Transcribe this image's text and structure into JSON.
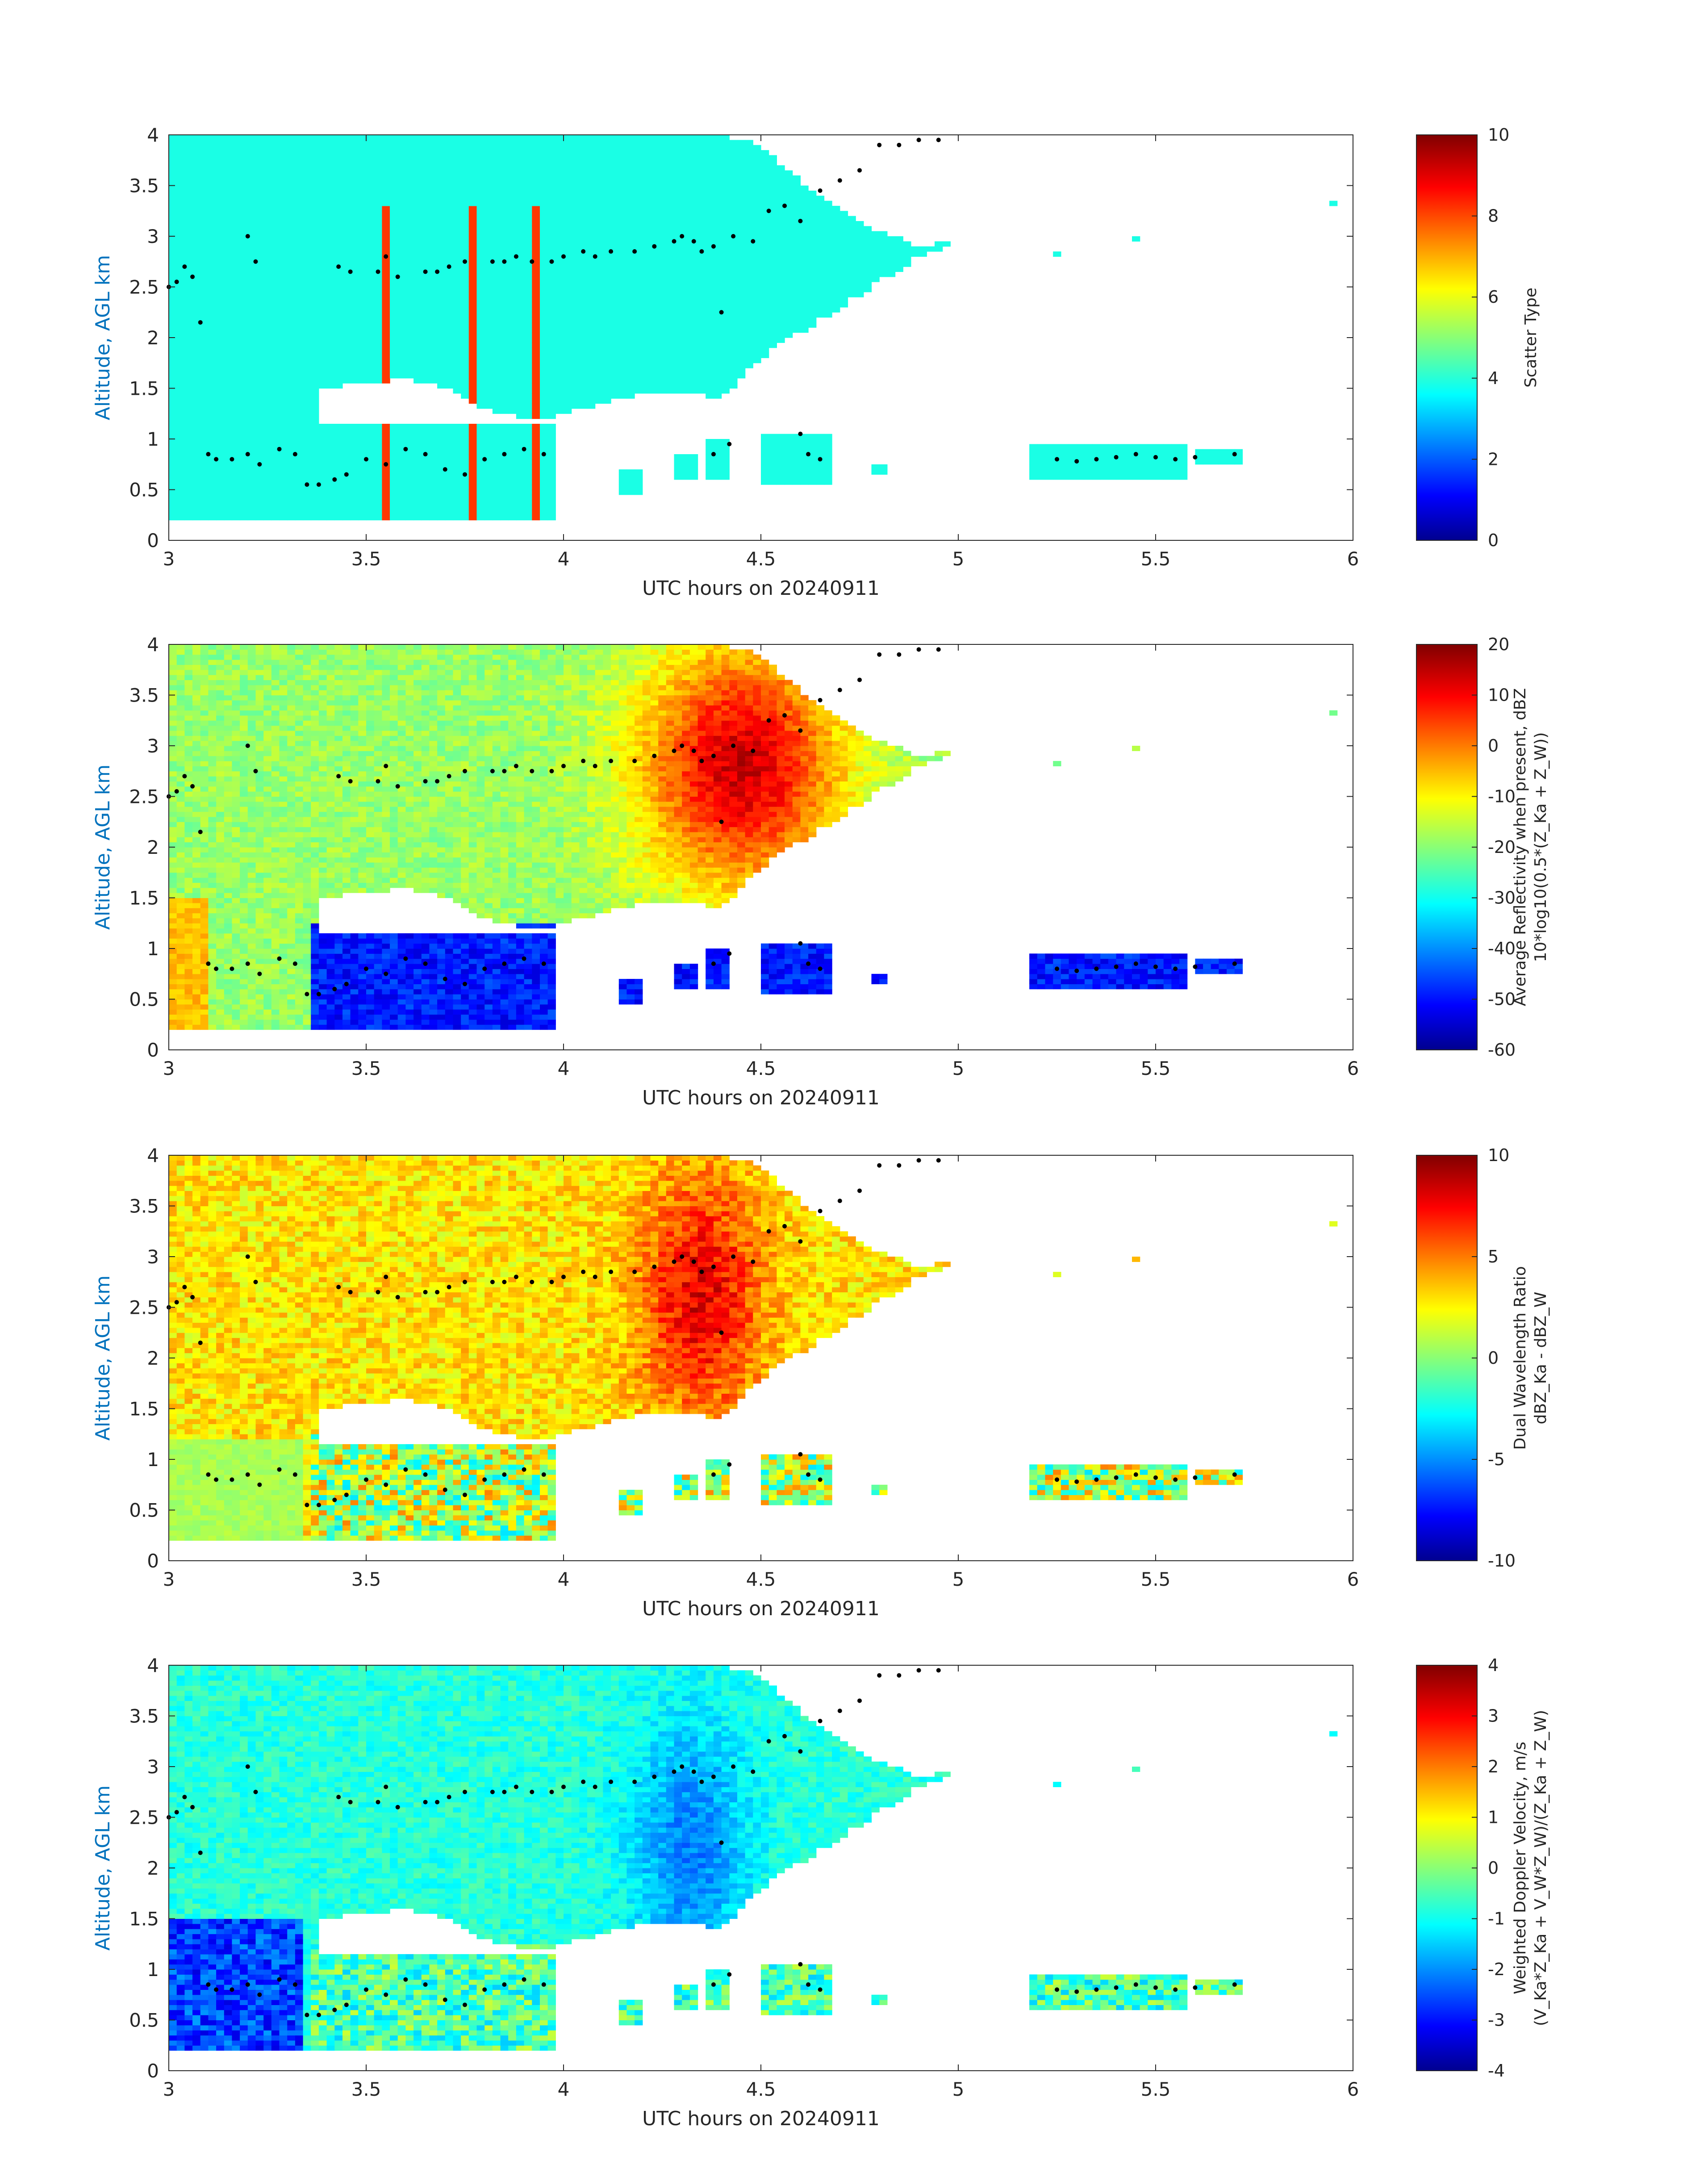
{
  "chart_data": [
    {
      "type": "heatmap",
      "xlabel": "UTC hours on 20240911",
      "ylabel": "Altitude, AGL km",
      "xlim": [
        3,
        6
      ],
      "ylim": [
        0,
        4
      ],
      "xticks": [
        "3",
        "3.5",
        "4",
        "4.5",
        "5",
        "5.5",
        "6"
      ],
      "yticks": [
        "0",
        "0.5",
        "1",
        "1.5",
        "2",
        "2.5",
        "3",
        "3.5",
        "4"
      ],
      "colorbar": {
        "label_lines": [
          "Scatter Type"
        ],
        "range": [
          0,
          10
        ],
        "ticks": [
          "0",
          "2",
          "4",
          "6",
          "8",
          "10"
        ],
        "colormap": "jet"
      },
      "field_description": "Mostly cyan (value ~4) cloud top region from 0.2 km up to 4 km, orange/red (~8) vertical streaks at ~3.4-3.95 h, scattered low cloud below 1.2 km"
    },
    {
      "type": "heatmap",
      "xlabel": "UTC hours on 20240911",
      "ylabel": "Altitude, AGL km",
      "xlim": [
        3,
        6
      ],
      "ylim": [
        0,
        4
      ],
      "xticks": [
        "3",
        "3.5",
        "4",
        "4.5",
        "5",
        "5.5",
        "6"
      ],
      "yticks": [
        "0",
        "0.5",
        "1",
        "1.5",
        "2",
        "2.5",
        "3",
        "3.5",
        "4"
      ],
      "colorbar": {
        "label_lines": [
          "Average Reflectivity when present, dBZ",
          "10*log10(0.5*(Z_Ka + Z_W))"
        ],
        "range": [
          -60,
          20
        ],
        "ticks": [
          "-60",
          "-50",
          "-40",
          "-30",
          "-20",
          "-10",
          "0",
          "10",
          "20"
        ],
        "colormap": "jet"
      },
      "field_description": "Strong reflectivity (red, ~10-15 dBZ) core between 4.1 and 4.9 h from 1.4 to 4 km; yellow-green elsewhere; dark blue low cloud below 1.2 km"
    },
    {
      "type": "heatmap",
      "xlabel": "UTC hours on 20240911",
      "ylabel": "Altitude, AGL km",
      "xlim": [
        3,
        6
      ],
      "ylim": [
        0,
        4
      ],
      "xticks": [
        "3",
        "3.5",
        "4",
        "4.5",
        "5",
        "5.5",
        "6"
      ],
      "yticks": [
        "0",
        "0.5",
        "1",
        "1.5",
        "2",
        "2.5",
        "3",
        "3.5",
        "4"
      ],
      "colorbar": {
        "label_lines": [
          "Dual Wavelength Ratio",
          "dBZ_Ka - dBZ_W"
        ],
        "range": [
          -10,
          10
        ],
        "ticks": [
          "-10",
          "-5",
          "0",
          "5",
          "10"
        ],
        "colormap": "jet"
      },
      "field_description": "Mostly yellow (~3 dB) DWR, red (~6-8 dB) region at 4.15-4.55 h from 1.4 to 4 km, light green patch low near 3.0-3.35 h"
    },
    {
      "type": "heatmap",
      "xlabel": "UTC hours on 20240911",
      "ylabel": "Altitude, AGL km",
      "xlim": [
        3,
        6
      ],
      "ylim": [
        0,
        4
      ],
      "xticks": [
        "3",
        "3.5",
        "4",
        "4.5",
        "5",
        "5.5",
        "6"
      ],
      "yticks": [
        "0",
        "0.5",
        "1",
        "1.5",
        "2",
        "2.5",
        "3",
        "3.5",
        "4"
      ],
      "colorbar": {
        "label_lines": [
          "Weighted Doppler Velocity, m/s",
          "(V_Ka*Z_Ka + V_W*Z_W)/(Z_Ka + Z_W)"
        ],
        "range": [
          -4,
          4
        ],
        "ticks": [
          "-4",
          "-3",
          "-2",
          "-1",
          "0",
          "1",
          "2",
          "3",
          "4"
        ],
        "colormap": "jet"
      },
      "field_description": "Mostly light-blue/green (-1 to 0 m/s), bluer (-1.5 to -2 m/s) core near 4.3 h, dark blue (-3 to -4 m/s) low region at 3.0-3.4 h"
    }
  ],
  "overlay_points": {
    "description": "black dot markers (layer heights) repeated identically on all four panels",
    "upper": [
      [
        3.0,
        2.5
      ],
      [
        3.02,
        2.55
      ],
      [
        3.04,
        2.7
      ],
      [
        3.06,
        2.6
      ],
      [
        3.08,
        2.15
      ],
      [
        3.2,
        3.0
      ],
      [
        3.22,
        2.75
      ],
      [
        3.43,
        2.7
      ],
      [
        3.46,
        2.65
      ],
      [
        3.53,
        2.65
      ],
      [
        3.55,
        2.8
      ],
      [
        3.58,
        2.6
      ],
      [
        3.65,
        2.65
      ],
      [
        3.68,
        2.65
      ],
      [
        3.71,
        2.7
      ],
      [
        3.75,
        2.75
      ],
      [
        3.82,
        2.75
      ],
      [
        3.85,
        2.75
      ],
      [
        3.88,
        2.8
      ],
      [
        3.92,
        2.75
      ],
      [
        3.97,
        2.75
      ],
      [
        4.0,
        2.8
      ],
      [
        4.05,
        2.85
      ],
      [
        4.08,
        2.8
      ],
      [
        4.12,
        2.85
      ],
      [
        4.18,
        2.85
      ],
      [
        4.23,
        2.9
      ],
      [
        4.28,
        2.95
      ],
      [
        4.3,
        3.0
      ],
      [
        4.33,
        2.95
      ],
      [
        4.35,
        2.85
      ],
      [
        4.38,
        2.9
      ],
      [
        4.4,
        2.25
      ],
      [
        4.43,
        3.0
      ],
      [
        4.48,
        2.95
      ],
      [
        4.52,
        3.25
      ],
      [
        4.56,
        3.3
      ],
      [
        4.6,
        3.15
      ],
      [
        4.65,
        3.45
      ],
      [
        4.7,
        3.55
      ],
      [
        4.75,
        3.65
      ],
      [
        4.8,
        3.9
      ],
      [
        4.85,
        3.9
      ],
      [
        4.9,
        3.95
      ],
      [
        4.95,
        3.95
      ]
    ],
    "lower": [
      [
        3.1,
        0.85
      ],
      [
        3.12,
        0.8
      ],
      [
        3.16,
        0.8
      ],
      [
        3.2,
        0.85
      ],
      [
        3.23,
        0.75
      ],
      [
        3.28,
        0.9
      ],
      [
        3.32,
        0.85
      ],
      [
        3.35,
        0.55
      ],
      [
        3.38,
        0.55
      ],
      [
        3.42,
        0.6
      ],
      [
        3.45,
        0.65
      ],
      [
        3.5,
        0.8
      ],
      [
        3.55,
        0.75
      ],
      [
        3.6,
        0.9
      ],
      [
        3.65,
        0.85
      ],
      [
        3.7,
        0.7
      ],
      [
        3.75,
        0.65
      ],
      [
        3.8,
        0.8
      ],
      [
        3.85,
        0.85
      ],
      [
        3.9,
        0.9
      ],
      [
        3.95,
        0.85
      ],
      [
        4.38,
        0.85
      ],
      [
        4.42,
        0.95
      ],
      [
        4.6,
        1.05
      ],
      [
        4.62,
        0.85
      ],
      [
        4.65,
        0.8
      ],
      [
        5.25,
        0.8
      ],
      [
        5.3,
        0.78
      ],
      [
        5.35,
        0.8
      ],
      [
        5.4,
        0.82
      ],
      [
        5.45,
        0.85
      ],
      [
        5.5,
        0.82
      ],
      [
        5.55,
        0.8
      ],
      [
        5.6,
        0.82
      ],
      [
        5.7,
        0.85
      ]
    ]
  }
}
